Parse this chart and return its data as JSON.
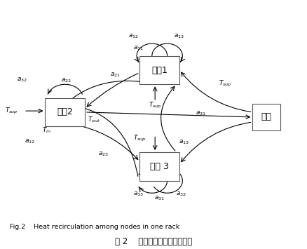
{
  "bg_color": "#ffffff",
  "title_en": "Fig.2    Heat recirculation among nodes in one rack",
  "title_cn": "图 2    同一机架内节点热量交互",
  "n2": [
    0.21,
    0.55
  ],
  "n1": [
    0.52,
    0.72
  ],
  "n3": [
    0.52,
    0.33
  ],
  "ac": [
    0.87,
    0.53
  ],
  "nw": 0.13,
  "nh": 0.115,
  "acw": 0.09,
  "ach": 0.11
}
